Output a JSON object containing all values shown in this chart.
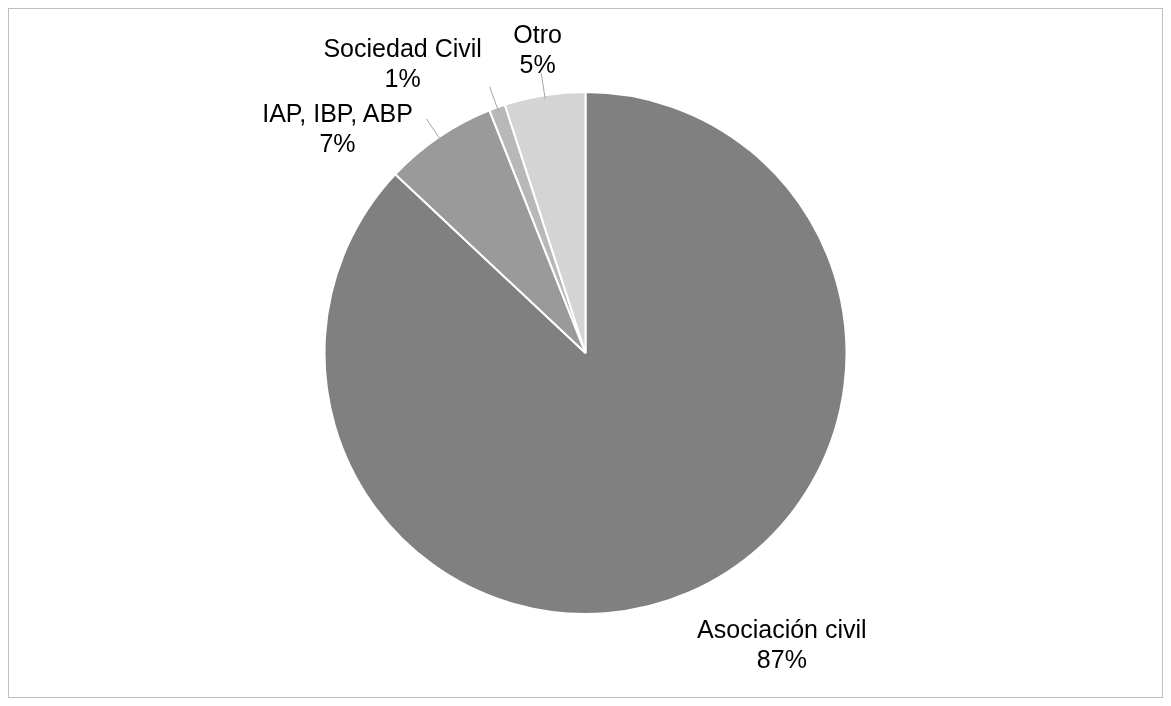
{
  "chart_data": {
    "type": "pie",
    "categories": [
      "Asociación civil",
      "IAP, IBP, ABP",
      "Sociedad Civil",
      "Otro"
    ],
    "values": [
      87,
      7,
      1,
      5
    ],
    "value_labels": [
      "87%",
      "7%",
      "1%",
      "5%"
    ],
    "colors": [
      "#808080",
      "#9a9a9a",
      "#b8b8b8",
      "#d4d4d4"
    ],
    "legend": false
  }
}
